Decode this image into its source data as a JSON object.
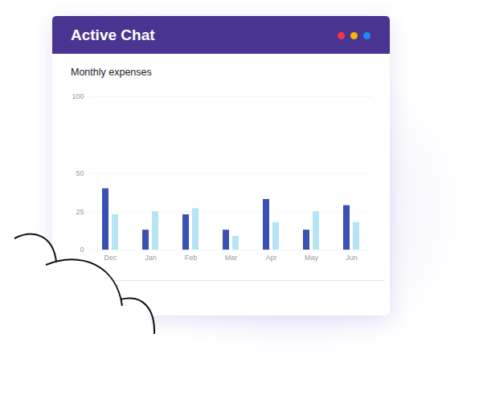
{
  "header": {
    "title": "Active Chat"
  },
  "chart_data": {
    "type": "bar",
    "title": "Monthly expenses",
    "categories": [
      "Dec",
      "Jan",
      "Feb",
      "Mar",
      "Apr",
      "May",
      "Jun"
    ],
    "series": [
      {
        "color": "#3a50b2",
        "values": [
          40,
          13,
          23,
          13,
          33,
          13,
          29
        ]
      },
      {
        "color": "#b5e4f7",
        "values": [
          23,
          25,
          27,
          9,
          18,
          25,
          18
        ]
      }
    ],
    "ylim": [
      0,
      100
    ],
    "yticks": [
      0,
      25,
      50,
      100
    ],
    "grid": true
  }
}
